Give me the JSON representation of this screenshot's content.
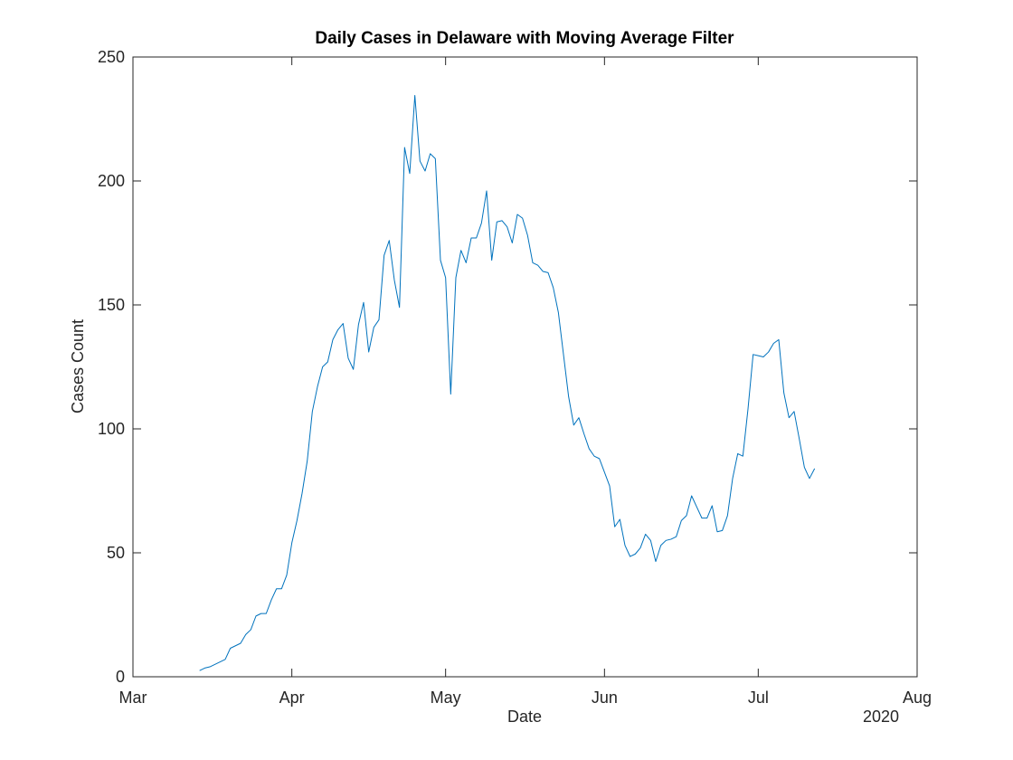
{
  "chart_data": {
    "type": "line",
    "title": "Daily Cases in Delaware with Moving Average Filter",
    "x_label": "Date",
    "y_label": "Cases Count",
    "x_secondary_label": "2020",
    "x": [
      13,
      14,
      15,
      16,
      17,
      18,
      19,
      20,
      21,
      22,
      23,
      24,
      25,
      26,
      27,
      28,
      29,
      30,
      31,
      32,
      33,
      34,
      35,
      36,
      37,
      38,
      39,
      40,
      41,
      42,
      43,
      44,
      45,
      46,
      47,
      48,
      49,
      50,
      51,
      52,
      53,
      54,
      55,
      56,
      57,
      58,
      59,
      60,
      61,
      62,
      63,
      64,
      65,
      66,
      67,
      68,
      69,
      70,
      71,
      72,
      73,
      74,
      75,
      76,
      77,
      78,
      79,
      80,
      81,
      82,
      83,
      84,
      85,
      86,
      87,
      88,
      89,
      90,
      91,
      92,
      93,
      94,
      95,
      96,
      97,
      98,
      99,
      100,
      101,
      102,
      103,
      104,
      105,
      106,
      107,
      108,
      109,
      110,
      111,
      112,
      113,
      114,
      115,
      116,
      117,
      118,
      119,
      120,
      121,
      122,
      123,
      124,
      125,
      126,
      127,
      128,
      129,
      130,
      131,
      132,
      133
    ],
    "series": [
      {
        "color": "#0072bd",
        "values": [
          2.5,
          3.5,
          4,
          5,
          6,
          7,
          11.5,
          12.5,
          13.5,
          17,
          19,
          24.5,
          25.5,
          25.5,
          31,
          35.5,
          35.5,
          41,
          54,
          63,
          74,
          87,
          107,
          117,
          125,
          127,
          136,
          140,
          142.5,
          128.5,
          124,
          142,
          151,
          131,
          141,
          144,
          170,
          176,
          160,
          149,
          213.5,
          203,
          234.5,
          208,
          204,
          211,
          209,
          168,
          161,
          114,
          161,
          172,
          167,
          177,
          177,
          183,
          196,
          168,
          183.5,
          184,
          181.5,
          175,
          186.5,
          185,
          178,
          167,
          166,
          163.5,
          163,
          157,
          147,
          130,
          113,
          101.5,
          104.5,
          98,
          92,
          89,
          88,
          82.5,
          77,
          60.5,
          63.5,
          53,
          48.5,
          49.5,
          52,
          57.5,
          55,
          46.5,
          53,
          55,
          55.5,
          56.5,
          63,
          65,
          73,
          68.5,
          64,
          64,
          69,
          58.5,
          59,
          65,
          80,
          90,
          89,
          108,
          130,
          129.5,
          129,
          131,
          134.5,
          136,
          114.5,
          104.5,
          107,
          96,
          84.5,
          80,
          84
        ]
      }
    ],
    "xlim": [
      0,
      153
    ],
    "xticks": [
      {
        "value": 0,
        "label": "Mar"
      },
      {
        "value": 31,
        "label": "Apr"
      },
      {
        "value": 61,
        "label": "May"
      },
      {
        "value": 92,
        "label": "Jun"
      },
      {
        "value": 122,
        "label": "Jul"
      },
      {
        "value": 153,
        "label": "Aug"
      }
    ],
    "ylim": [
      0,
      250
    ],
    "yticks": [
      0,
      50,
      100,
      150,
      200,
      250
    ],
    "grid": false
  }
}
